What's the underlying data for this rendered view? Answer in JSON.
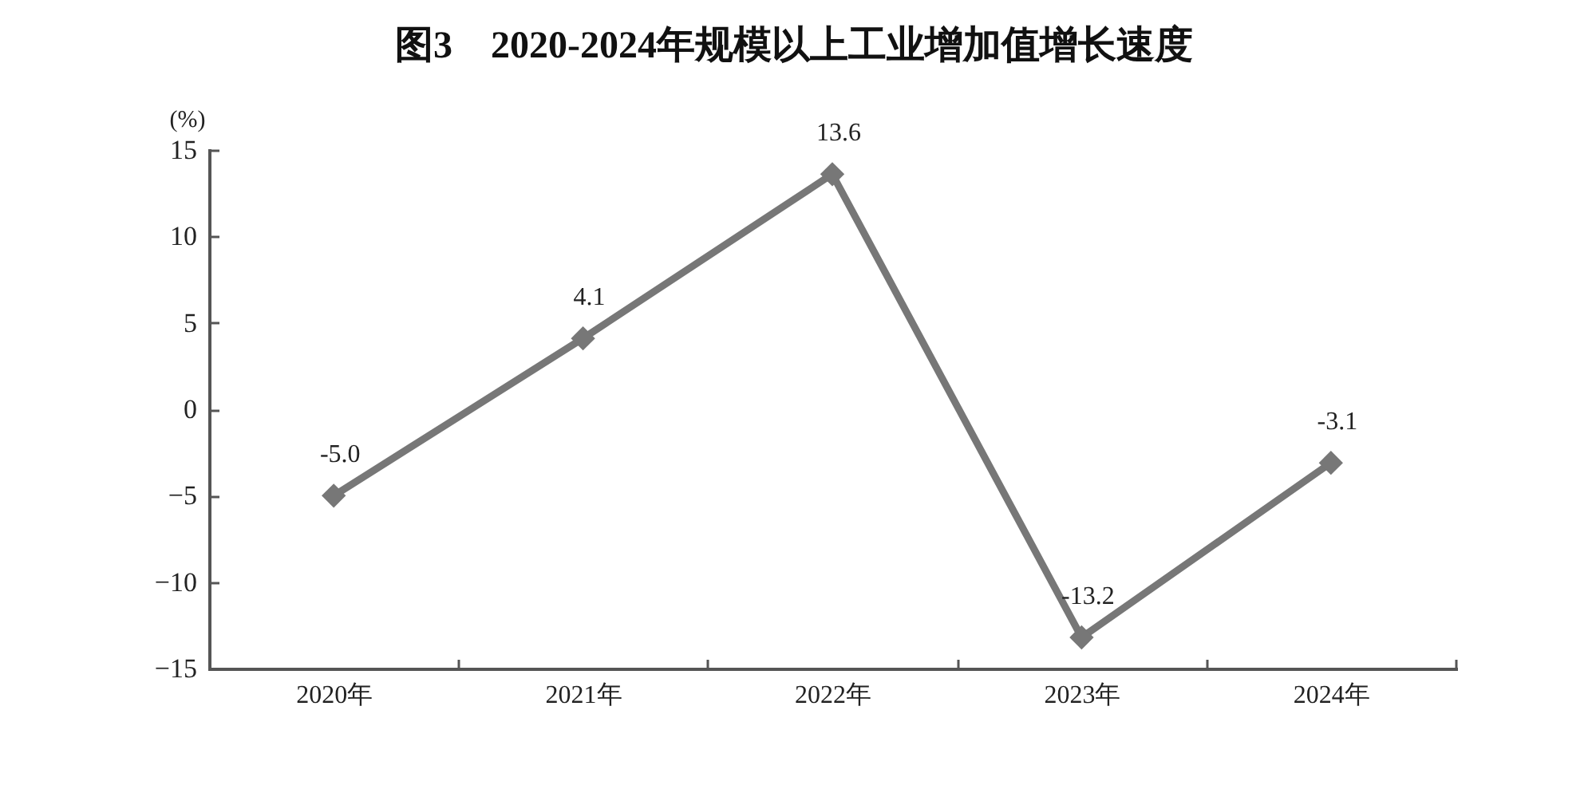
{
  "chart_data": {
    "type": "line",
    "title": "图3　2020-2024年规模以上工业增加值增长速度",
    "ylabel": "(%)",
    "categories": [
      "2020年",
      "2021年",
      "2022年",
      "2023年",
      "2024年"
    ],
    "series": [
      {
        "color": "#777777",
        "values": [
          -5.0,
          4.1,
          13.6,
          -13.2,
          -3.1
        ],
        "value_labels": [
          "-5.0",
          "4.1",
          "13.6",
          "-13.2",
          "-3.1"
        ]
      }
    ],
    "ylim": [
      -15,
      15
    ],
    "yticks": [
      -15,
      -10,
      -5,
      0,
      5,
      10,
      15
    ],
    "marker": "diamond",
    "line_style": "solid"
  }
}
